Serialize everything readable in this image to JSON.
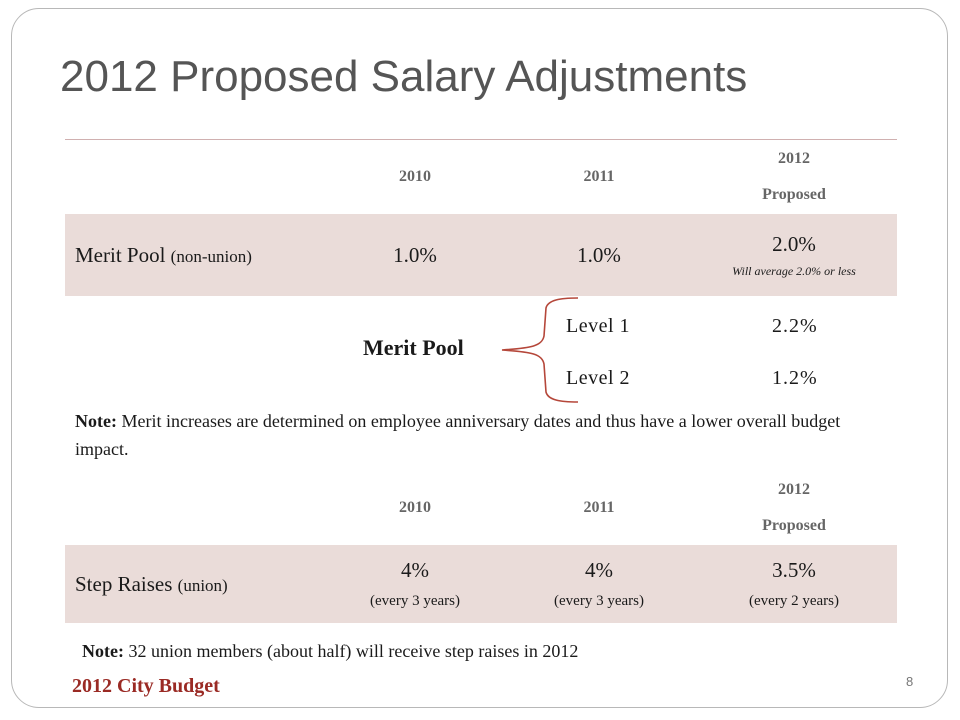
{
  "slide": {
    "title": "2012 Proposed Salary Adjustments",
    "page_number": "8",
    "footer": "2012 City Budget"
  },
  "merit_table": {
    "headers": {
      "label": "",
      "col_2010": "2010",
      "col_2011": "2011",
      "col_2012_line1": "2012",
      "col_2012_line2": "Proposed"
    },
    "row": {
      "label": "Merit Pool",
      "qualifier": "(non-union)",
      "val_2010": "1.0%",
      "val_2011": "1.0%",
      "val_2012": "2.0%",
      "val_2012_note": "Will average 2.0% or less"
    }
  },
  "merit_breakdown": {
    "label": "Merit Pool",
    "levels": [
      {
        "name": "Level 1",
        "value": "2.2%"
      },
      {
        "name": "Level 2",
        "value": "1.2%"
      }
    ],
    "brace_color": "#b5473a"
  },
  "merit_note": {
    "label": "Note:",
    "text": "Merit increases are determined on employee anniversary dates and thus have a lower overall budget impact."
  },
  "step_table": {
    "headers": {
      "label": "",
      "col_2010": "2010",
      "col_2011": "2011",
      "col_2012_line1": "2012",
      "col_2012_line2": "Proposed"
    },
    "row": {
      "label": "Step Raises",
      "qualifier": "(union)",
      "val_2010": "4%",
      "val_2010_sub": "(every 3 years)",
      "val_2011": "4%",
      "val_2011_sub": "(every 3 years)",
      "val_2012": "3.5%",
      "val_2012_sub": "(every 2 years)"
    }
  },
  "step_note": {
    "label": "Note:",
    "text": "32 union members (about half) will receive step raises in 2012"
  },
  "colors": {
    "title": "#555555",
    "row_fill": "#eadcd9",
    "footer": "#9a2a24",
    "header_text": "#666666"
  }
}
